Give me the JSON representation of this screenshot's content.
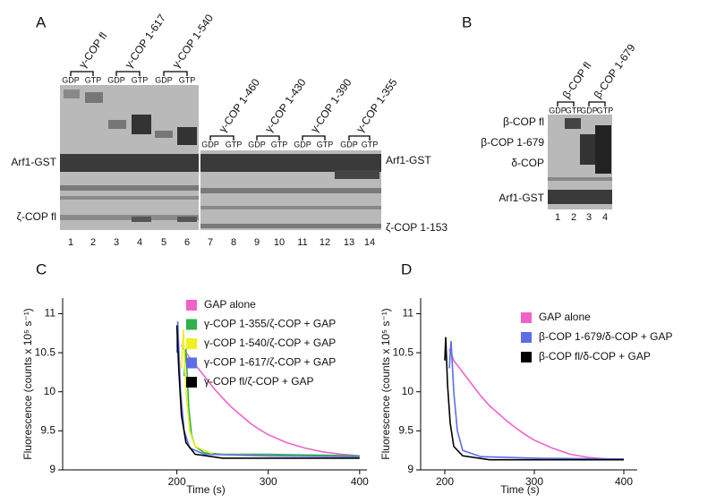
{
  "panel_a": {
    "label": "A",
    "constructs": [
      {
        "name": "γ-COP fl",
        "lanes": [
          "GDP",
          "GTP"
        ]
      },
      {
        "name": "γ-COP 1-617",
        "lanes": [
          "GDP",
          "GTP"
        ]
      },
      {
        "name": "γ-COP 1-540",
        "lanes": [
          "GDP",
          "GTP"
        ]
      },
      {
        "name": "γ-COP 1-460",
        "lanes": [
          "GDP",
          "GTP"
        ]
      },
      {
        "name": "γ-COP 1-430",
        "lanes": [
          "GDP",
          "GTP"
        ]
      },
      {
        "name": "γ-COP 1-390",
        "lanes": [
          "GDP",
          "GTP"
        ]
      },
      {
        "name": "γ-COP 1-355",
        "lanes": [
          "GDP",
          "GTP"
        ]
      }
    ],
    "left_labels": [
      "Arf1-GST",
      "ζ-COP fl"
    ],
    "right_labels": [
      "Arf1-GST",
      "ζ-COP 1-153"
    ],
    "lane_numbers": [
      1,
      2,
      3,
      4,
      5,
      6,
      7,
      8,
      9,
      10,
      11,
      12,
      13,
      14
    ]
  },
  "panel_b": {
    "label": "B",
    "constructs": [
      {
        "name": "β-COP fl",
        "lanes": [
          "GDP",
          "GTP"
        ]
      },
      {
        "name": "β-COP 1-679",
        "lanes": [
          "GDP",
          "GTP"
        ]
      }
    ],
    "left_labels": [
      "β-COP fl",
      "β-COP 1-679",
      "δ-COP",
      "Arf1-GST"
    ],
    "lane_numbers": [
      1,
      2,
      3,
      4
    ]
  },
  "chart_data": [
    {
      "type": "line",
      "panel_label": "C",
      "x_label": "Time (s)",
      "y_label": "Fluorescence (counts x 10⁵ s⁻¹)",
      "xlim": [
        75,
        408
      ],
      "ylim": [
        9,
        11.2
      ],
      "xticks": [
        200,
        300,
        400
      ],
      "yticks": [
        9,
        9.5,
        10,
        10.5,
        11
      ],
      "legend": "upper right",
      "series": [
        {
          "name": "GAP alone",
          "color": "#f062c8",
          "x": [
            205,
            210,
            220,
            230,
            240,
            250,
            260,
            270,
            280,
            290,
            300,
            320,
            340,
            360,
            380,
            400
          ],
          "values": [
            10.6,
            10.5,
            10.35,
            10.2,
            10.05,
            9.92,
            9.8,
            9.7,
            9.6,
            9.52,
            9.45,
            9.35,
            9.28,
            9.23,
            9.2,
            9.18
          ]
        },
        {
          "name": "γ-COP 1-355/ζ-COP + GAP",
          "color": "#2db34a",
          "x": [
            208,
            210,
            213,
            216,
            220,
            230,
            250,
            300,
            350,
            400
          ],
          "values": [
            10.2,
            10.55,
            9.8,
            9.45,
            9.3,
            9.22,
            9.2,
            9.2,
            9.19,
            9.18
          ]
        },
        {
          "name": "γ-COP 1-540/ζ-COP + GAP",
          "color": "#f0f020",
          "x": [
            205,
            207,
            210,
            214,
            220,
            240,
            300,
            400
          ],
          "values": [
            10.3,
            10.8,
            10.0,
            9.5,
            9.3,
            9.2,
            9.18,
            9.17
          ]
        },
        {
          "name": "γ-COP 1-617/ζ-COP + GAP",
          "color": "#5a6ee6",
          "x": [
            200,
            201,
            204,
            208,
            214,
            230,
            300,
            400
          ],
          "values": [
            10.5,
            10.9,
            10.0,
            9.5,
            9.28,
            9.2,
            9.18,
            9.17
          ]
        },
        {
          "name": "γ-COP fl/ζ-COP + GAP",
          "color": "#000000",
          "x": [
            200,
            202,
            205,
            210,
            220,
            250,
            300,
            400
          ],
          "values": [
            10.85,
            10.3,
            9.7,
            9.35,
            9.2,
            9.15,
            9.15,
            9.15
          ]
        }
      ]
    },
    {
      "type": "line",
      "panel_label": "D",
      "x_label": "Time (s)",
      "y_label": "Fluorescence (counts x 10⁵ s⁻¹)",
      "xlim": [
        173,
        415
      ],
      "ylim": [
        9,
        11.2
      ],
      "xticks": [
        200,
        300,
        400
      ],
      "yticks": [
        9,
        9.5,
        10,
        10.5,
        11
      ],
      "legend": "upper right",
      "series": [
        {
          "name": "GAP alone",
          "color": "#f062c8",
          "x": [
            205,
            210,
            220,
            230,
            240,
            250,
            260,
            270,
            280,
            290,
            300,
            320,
            340,
            360,
            380,
            400
          ],
          "values": [
            10.55,
            10.4,
            10.25,
            10.1,
            9.95,
            9.82,
            9.72,
            9.62,
            9.53,
            9.45,
            9.38,
            9.28,
            9.2,
            9.16,
            9.14,
            9.13
          ]
        },
        {
          "name": "β-COP 1-679/δ-COP + GAP",
          "color": "#5a6ee6",
          "x": [
            205,
            207,
            210,
            214,
            220,
            240,
            300,
            400
          ],
          "values": [
            10.3,
            10.65,
            10.0,
            9.5,
            9.25,
            9.17,
            9.15,
            9.14
          ]
        },
        {
          "name": "β-COP fl/δ-COP + GAP",
          "color": "#000000",
          "x": [
            200,
            201,
            203,
            206,
            210,
            220,
            250,
            300,
            400
          ],
          "values": [
            10.4,
            10.7,
            10.1,
            9.6,
            9.3,
            9.18,
            9.13,
            9.13,
            9.13
          ]
        }
      ]
    }
  ]
}
